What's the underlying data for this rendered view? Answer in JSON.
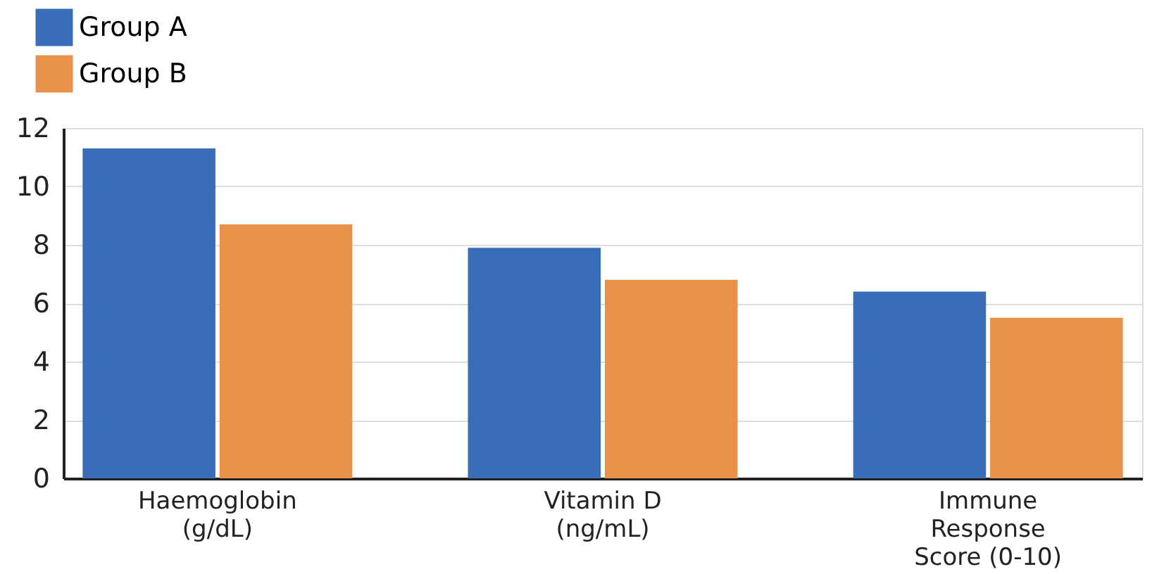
{
  "chart_data": {
    "type": "bar",
    "categories": [
      "Haemoglobin\n(g/dL)",
      "Vitamin D\n(ng/mL)",
      "Immune\nResponse\nScore (0-10)"
    ],
    "series": [
      {
        "name": "Group A",
        "color": "#3a6db8",
        "values": [
          11.3,
          7.9,
          6.4
        ]
      },
      {
        "name": "Group B",
        "color": "#e8914a",
        "values": [
          8.7,
          6.8,
          5.5
        ]
      }
    ],
    "ylim": [
      0,
      12
    ],
    "yticks": [
      0,
      2,
      4,
      6,
      8,
      10,
      12
    ],
    "grid": "y",
    "legend": "top left"
  }
}
